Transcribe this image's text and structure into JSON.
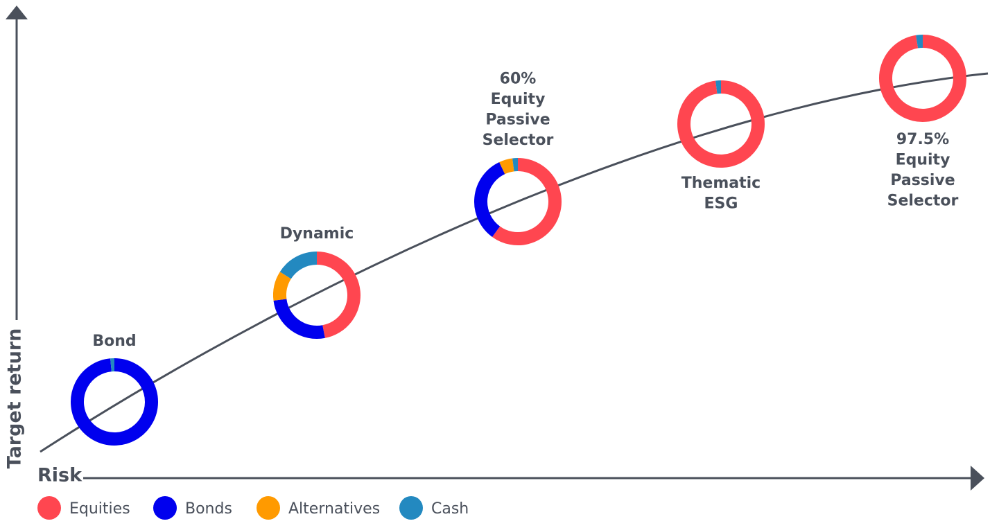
{
  "chart_data": {
    "type": "donut-path",
    "x_label": "Risk",
    "y_label": "Target return",
    "categories": [
      "Equities",
      "Bonds",
      "Alternatives",
      "Cash"
    ],
    "colors": [
      "#ff4650",
      "#0000ee",
      "#ff9a00",
      "#2389c0"
    ],
    "portfolios": [
      {
        "label": [
          "Bond"
        ],
        "values": [
          0,
          98.5,
          0,
          1.5
        ]
      },
      {
        "label": [
          "Dynamic"
        ],
        "values": [
          47,
          26,
          11,
          16
        ]
      },
      {
        "label": [
          "60%",
          "Equity",
          "Passive",
          "Selector"
        ],
        "values": [
          60,
          33,
          5,
          2
        ]
      },
      {
        "label": [
          "Thematic",
          "ESG"
        ],
        "values": [
          98,
          0,
          0,
          2
        ]
      },
      {
        "label": [
          "97.5%",
          "Equity",
          "Passive",
          "Selector"
        ],
        "values": [
          97.5,
          0,
          0,
          2.5
        ]
      }
    ]
  }
}
